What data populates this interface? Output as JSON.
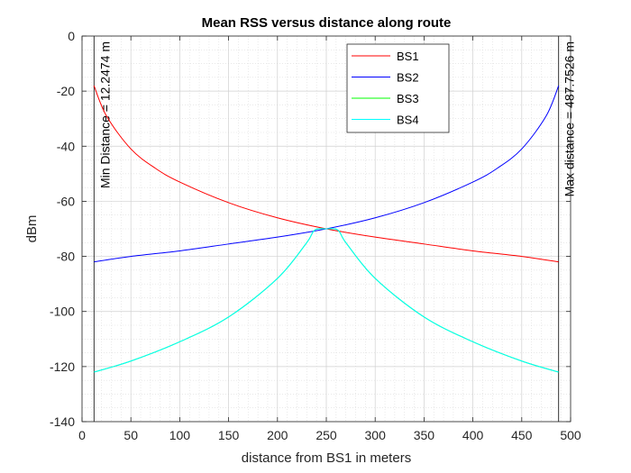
{
  "chart_data": {
    "type": "line",
    "title": "Mean RSS versus distance along route",
    "xlabel": "distance from BS1 in meters",
    "ylabel": "dBm",
    "xlim": [
      0,
      500
    ],
    "ylim": [
      -140,
      0
    ],
    "xticks": [
      0,
      50,
      100,
      150,
      200,
      250,
      300,
      350,
      400,
      450,
      500
    ],
    "yticks": [
      0,
      -20,
      -40,
      -60,
      -80,
      -100,
      -120,
      -140
    ],
    "grid": true,
    "minor_grid": true,
    "legend_position": "top-center",
    "series": [
      {
        "name": "BS1",
        "color": "#ff0000",
        "x": [
          12.25,
          25,
          50,
          75,
          100,
          150,
          200,
          250,
          300,
          350,
          400,
          450,
          487.75
        ],
        "y": [
          -18,
          -29,
          -41,
          -48,
          -53,
          -60.5,
          -66,
          -70,
          -73,
          -75.5,
          -78,
          -80,
          -82
        ]
      },
      {
        "name": "BS2",
        "color": "#0000ff",
        "x": [
          12.25,
          50,
          100,
          150,
          200,
          250,
          300,
          350,
          400,
          425,
          450,
          475,
          487.75
        ],
        "y": [
          -82,
          -80,
          -78,
          -75.5,
          -73,
          -70,
          -66,
          -60.5,
          -53,
          -48,
          -41,
          -29,
          -18
        ]
      },
      {
        "name": "BS3",
        "color": "#00ff00",
        "x": [
          12.25,
          50,
          100,
          150,
          200,
          230,
          238,
          250,
          262,
          270,
          300,
          350,
          400,
          450,
          487.75
        ],
        "y": [
          -122,
          -118,
          -111,
          -102,
          -88,
          -75,
          -70.5,
          -70,
          -70.5,
          -75,
          -88,
          -102,
          -111,
          -118,
          -122
        ]
      },
      {
        "name": "BS4",
        "color": "#00ffff",
        "x": [
          12.25,
          50,
          100,
          150,
          200,
          230,
          238,
          250,
          262,
          270,
          300,
          350,
          400,
          450,
          487.75
        ],
        "y": [
          -122,
          -118,
          -111,
          -102,
          -88,
          -75,
          -70.5,
          -70,
          -70.5,
          -75,
          -88,
          -102,
          -111,
          -118,
          -122
        ]
      }
    ],
    "vlines": [
      {
        "x": 12.2474,
        "label": "Min Distance = 12.2474 m"
      },
      {
        "x": 487.7526,
        "label": "Max distance = 487.7526 m"
      }
    ]
  }
}
